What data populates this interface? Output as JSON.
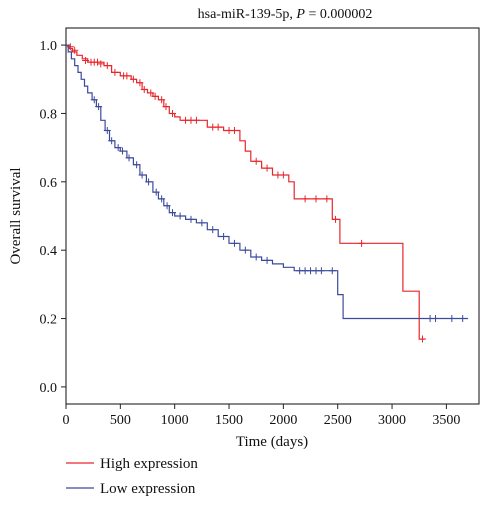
{
  "chart_data": {
    "type": "line",
    "title_prefix": "hsa-miR-139-5p, ",
    "title_p_label": "P",
    "title_p_value": " = 0.000002",
    "xlabel": "Time (days)",
    "ylabel": "Overall survival",
    "xlim": [
      0,
      3800
    ],
    "ylim": [
      -0.05,
      1.05
    ],
    "x_ticks": [
      0,
      500,
      1000,
      1500,
      2000,
      2500,
      3000,
      3500
    ],
    "y_ticks": [
      0.0,
      0.2,
      0.4,
      0.6,
      0.8,
      1.0
    ],
    "x_tick_labels": [
      "0",
      "500",
      "1000",
      "1500",
      "2000",
      "2500",
      "3000",
      "3500"
    ],
    "y_tick_labels": [
      "0.0",
      "0.2",
      "0.4",
      "0.6",
      "0.8",
      "1.0"
    ],
    "grid": false,
    "legend_placement": "bottom-left, outside plot",
    "series": [
      {
        "name": "High expression",
        "color": "#e8262b",
        "steps": [
          [
            0,
            1.0
          ],
          [
            30,
            0.99
          ],
          [
            60,
            0.98
          ],
          [
            100,
            0.97
          ],
          [
            150,
            0.96
          ],
          [
            200,
            0.95
          ],
          [
            350,
            0.94
          ],
          [
            420,
            0.92
          ],
          [
            500,
            0.91
          ],
          [
            600,
            0.9
          ],
          [
            650,
            0.89
          ],
          [
            700,
            0.87
          ],
          [
            750,
            0.86
          ],
          [
            800,
            0.85
          ],
          [
            850,
            0.84
          ],
          [
            900,
            0.82
          ],
          [
            950,
            0.8
          ],
          [
            1000,
            0.79
          ],
          [
            1050,
            0.78
          ],
          [
            1300,
            0.76
          ],
          [
            1450,
            0.75
          ],
          [
            1600,
            0.72
          ],
          [
            1650,
            0.69
          ],
          [
            1700,
            0.66
          ],
          [
            1800,
            0.64
          ],
          [
            1900,
            0.62
          ],
          [
            2050,
            0.6
          ],
          [
            2100,
            0.55
          ],
          [
            2450,
            0.49
          ],
          [
            2520,
            0.42
          ],
          [
            3100,
            0.28
          ],
          [
            3250,
            0.14
          ],
          [
            3300,
            0.14
          ]
        ],
        "censors": [
          [
            40,
            0.995
          ],
          [
            80,
            0.985
          ],
          [
            180,
            0.955
          ],
          [
            230,
            0.95
          ],
          [
            260,
            0.95
          ],
          [
            290,
            0.95
          ],
          [
            320,
            0.945
          ],
          [
            380,
            0.94
          ],
          [
            450,
            0.92
          ],
          [
            530,
            0.91
          ],
          [
            560,
            0.91
          ],
          [
            620,
            0.9
          ],
          [
            680,
            0.89
          ],
          [
            720,
            0.87
          ],
          [
            780,
            0.86
          ],
          [
            820,
            0.85
          ],
          [
            880,
            0.84
          ],
          [
            920,
            0.82
          ],
          [
            980,
            0.8
          ],
          [
            1100,
            0.78
          ],
          [
            1150,
            0.78
          ],
          [
            1200,
            0.78
          ],
          [
            1350,
            0.76
          ],
          [
            1400,
            0.76
          ],
          [
            1500,
            0.75
          ],
          [
            1550,
            0.75
          ],
          [
            1750,
            0.66
          ],
          [
            1850,
            0.64
          ],
          [
            1950,
            0.62
          ],
          [
            2000,
            0.62
          ],
          [
            2200,
            0.55
          ],
          [
            2300,
            0.55
          ],
          [
            2400,
            0.55
          ],
          [
            2480,
            0.49
          ],
          [
            2720,
            0.42
          ],
          [
            3280,
            0.14
          ]
        ]
      },
      {
        "name": "Low expression",
        "color": "#3b4a9c",
        "steps": [
          [
            0,
            1.0
          ],
          [
            20,
            0.98
          ],
          [
            50,
            0.96
          ],
          [
            80,
            0.94
          ],
          [
            110,
            0.92
          ],
          [
            140,
            0.9
          ],
          [
            170,
            0.88
          ],
          [
            200,
            0.86
          ],
          [
            240,
            0.84
          ],
          [
            280,
            0.82
          ],
          [
            320,
            0.78
          ],
          [
            360,
            0.75
          ],
          [
            400,
            0.72
          ],
          [
            450,
            0.7
          ],
          [
            500,
            0.69
          ],
          [
            560,
            0.67
          ],
          [
            620,
            0.65
          ],
          [
            680,
            0.62
          ],
          [
            740,
            0.6
          ],
          [
            800,
            0.57
          ],
          [
            850,
            0.55
          ],
          [
            900,
            0.53
          ],
          [
            950,
            0.51
          ],
          [
            1000,
            0.5
          ],
          [
            1100,
            0.49
          ],
          [
            1200,
            0.48
          ],
          [
            1300,
            0.46
          ],
          [
            1400,
            0.44
          ],
          [
            1500,
            0.42
          ],
          [
            1600,
            0.4
          ],
          [
            1700,
            0.38
          ],
          [
            1800,
            0.37
          ],
          [
            1900,
            0.36
          ],
          [
            2000,
            0.35
          ],
          [
            2100,
            0.34
          ],
          [
            2400,
            0.34
          ],
          [
            2500,
            0.27
          ],
          [
            2550,
            0.2
          ],
          [
            3700,
            0.2
          ]
        ],
        "censors": [
          [
            260,
            0.84
          ],
          [
            300,
            0.82
          ],
          [
            380,
            0.75
          ],
          [
            420,
            0.72
          ],
          [
            480,
            0.7
          ],
          [
            520,
            0.69
          ],
          [
            580,
            0.67
          ],
          [
            650,
            0.65
          ],
          [
            700,
            0.62
          ],
          [
            760,
            0.6
          ],
          [
            830,
            0.57
          ],
          [
            880,
            0.55
          ],
          [
            930,
            0.53
          ],
          [
            980,
            0.51
          ],
          [
            1050,
            0.5
          ],
          [
            1150,
            0.49
          ],
          [
            1250,
            0.48
          ],
          [
            1350,
            0.46
          ],
          [
            1450,
            0.44
          ],
          [
            1550,
            0.42
          ],
          [
            1650,
            0.4
          ],
          [
            1750,
            0.38
          ],
          [
            1850,
            0.37
          ],
          [
            2150,
            0.34
          ],
          [
            2200,
            0.34
          ],
          [
            2250,
            0.34
          ],
          [
            2300,
            0.34
          ],
          [
            2350,
            0.34
          ],
          [
            2450,
            0.34
          ],
          [
            3350,
            0.2
          ],
          [
            3400,
            0.2
          ],
          [
            3550,
            0.2
          ],
          [
            3650,
            0.2
          ]
        ]
      }
    ]
  }
}
